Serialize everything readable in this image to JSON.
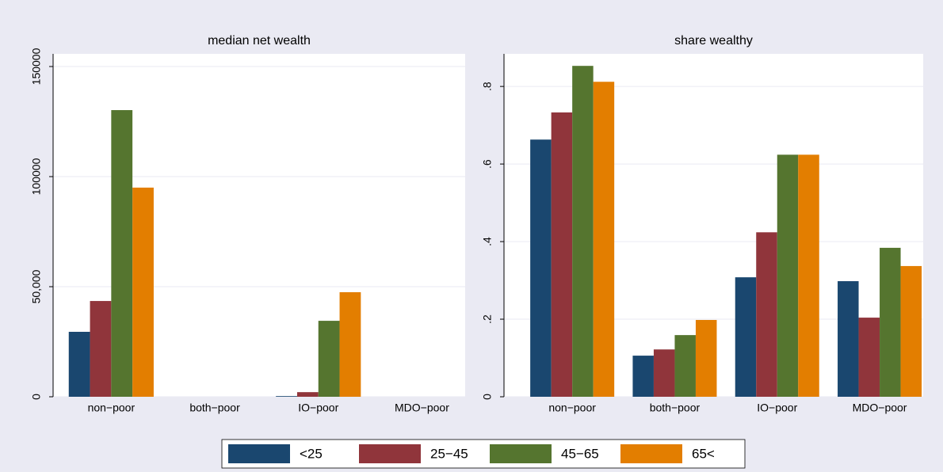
{
  "chart_data": [
    {
      "type": "bar",
      "title": "median net wealth",
      "categories": [
        "non−poor",
        "both−poor",
        "IO−poor",
        "MDO−poor"
      ],
      "series": [
        {
          "name": "<25",
          "color": "#1a476f",
          "values": [
            29500,
            0,
            300,
            0
          ]
        },
        {
          "name": "25−45",
          "color": "#90353b",
          "values": [
            43500,
            0,
            2100,
            0
          ]
        },
        {
          "name": "45−65",
          "color": "#55752f",
          "values": [
            130200,
            0,
            34500,
            0
          ]
        },
        {
          "name": "65<",
          "color": "#e37e00",
          "values": [
            95000,
            0,
            47500,
            0
          ]
        }
      ],
      "ylim": [
        0,
        155750
      ],
      "yticks": [
        0,
        {
          "value": 50000,
          "label": "50,000"
        },
        100000,
        150000
      ],
      "grid": true
    },
    {
      "type": "bar",
      "title": "share wealthy",
      "categories": [
        "non−poor",
        "both−poor",
        "IO−poor",
        "MDO−poor"
      ],
      "series": [
        {
          "name": "<25",
          "color": "#1a476f",
          "values": [
            0.663,
            0.106,
            0.308,
            0.298
          ]
        },
        {
          "name": "25−45",
          "color": "#90353b",
          "values": [
            0.733,
            0.122,
            0.424,
            0.204
          ]
        },
        {
          "name": "45−65",
          "color": "#55752f",
          "values": [
            0.853,
            0.159,
            0.624,
            0.384
          ]
        },
        {
          "name": "65<",
          "color": "#e37e00",
          "values": [
            0.812,
            0.198,
            0.624,
            0.337
          ]
        }
      ],
      "ylim": [
        0,
        0.884
      ],
      "yticks": [
        0,
        {
          "value": 0.2,
          "label": ".2"
        },
        {
          "value": 0.4,
          "label": ".4"
        },
        {
          "value": 0.6,
          "label": ".6"
        },
        {
          "value": 0.8,
          "label": ".8"
        }
      ],
      "grid": true
    }
  ]
}
